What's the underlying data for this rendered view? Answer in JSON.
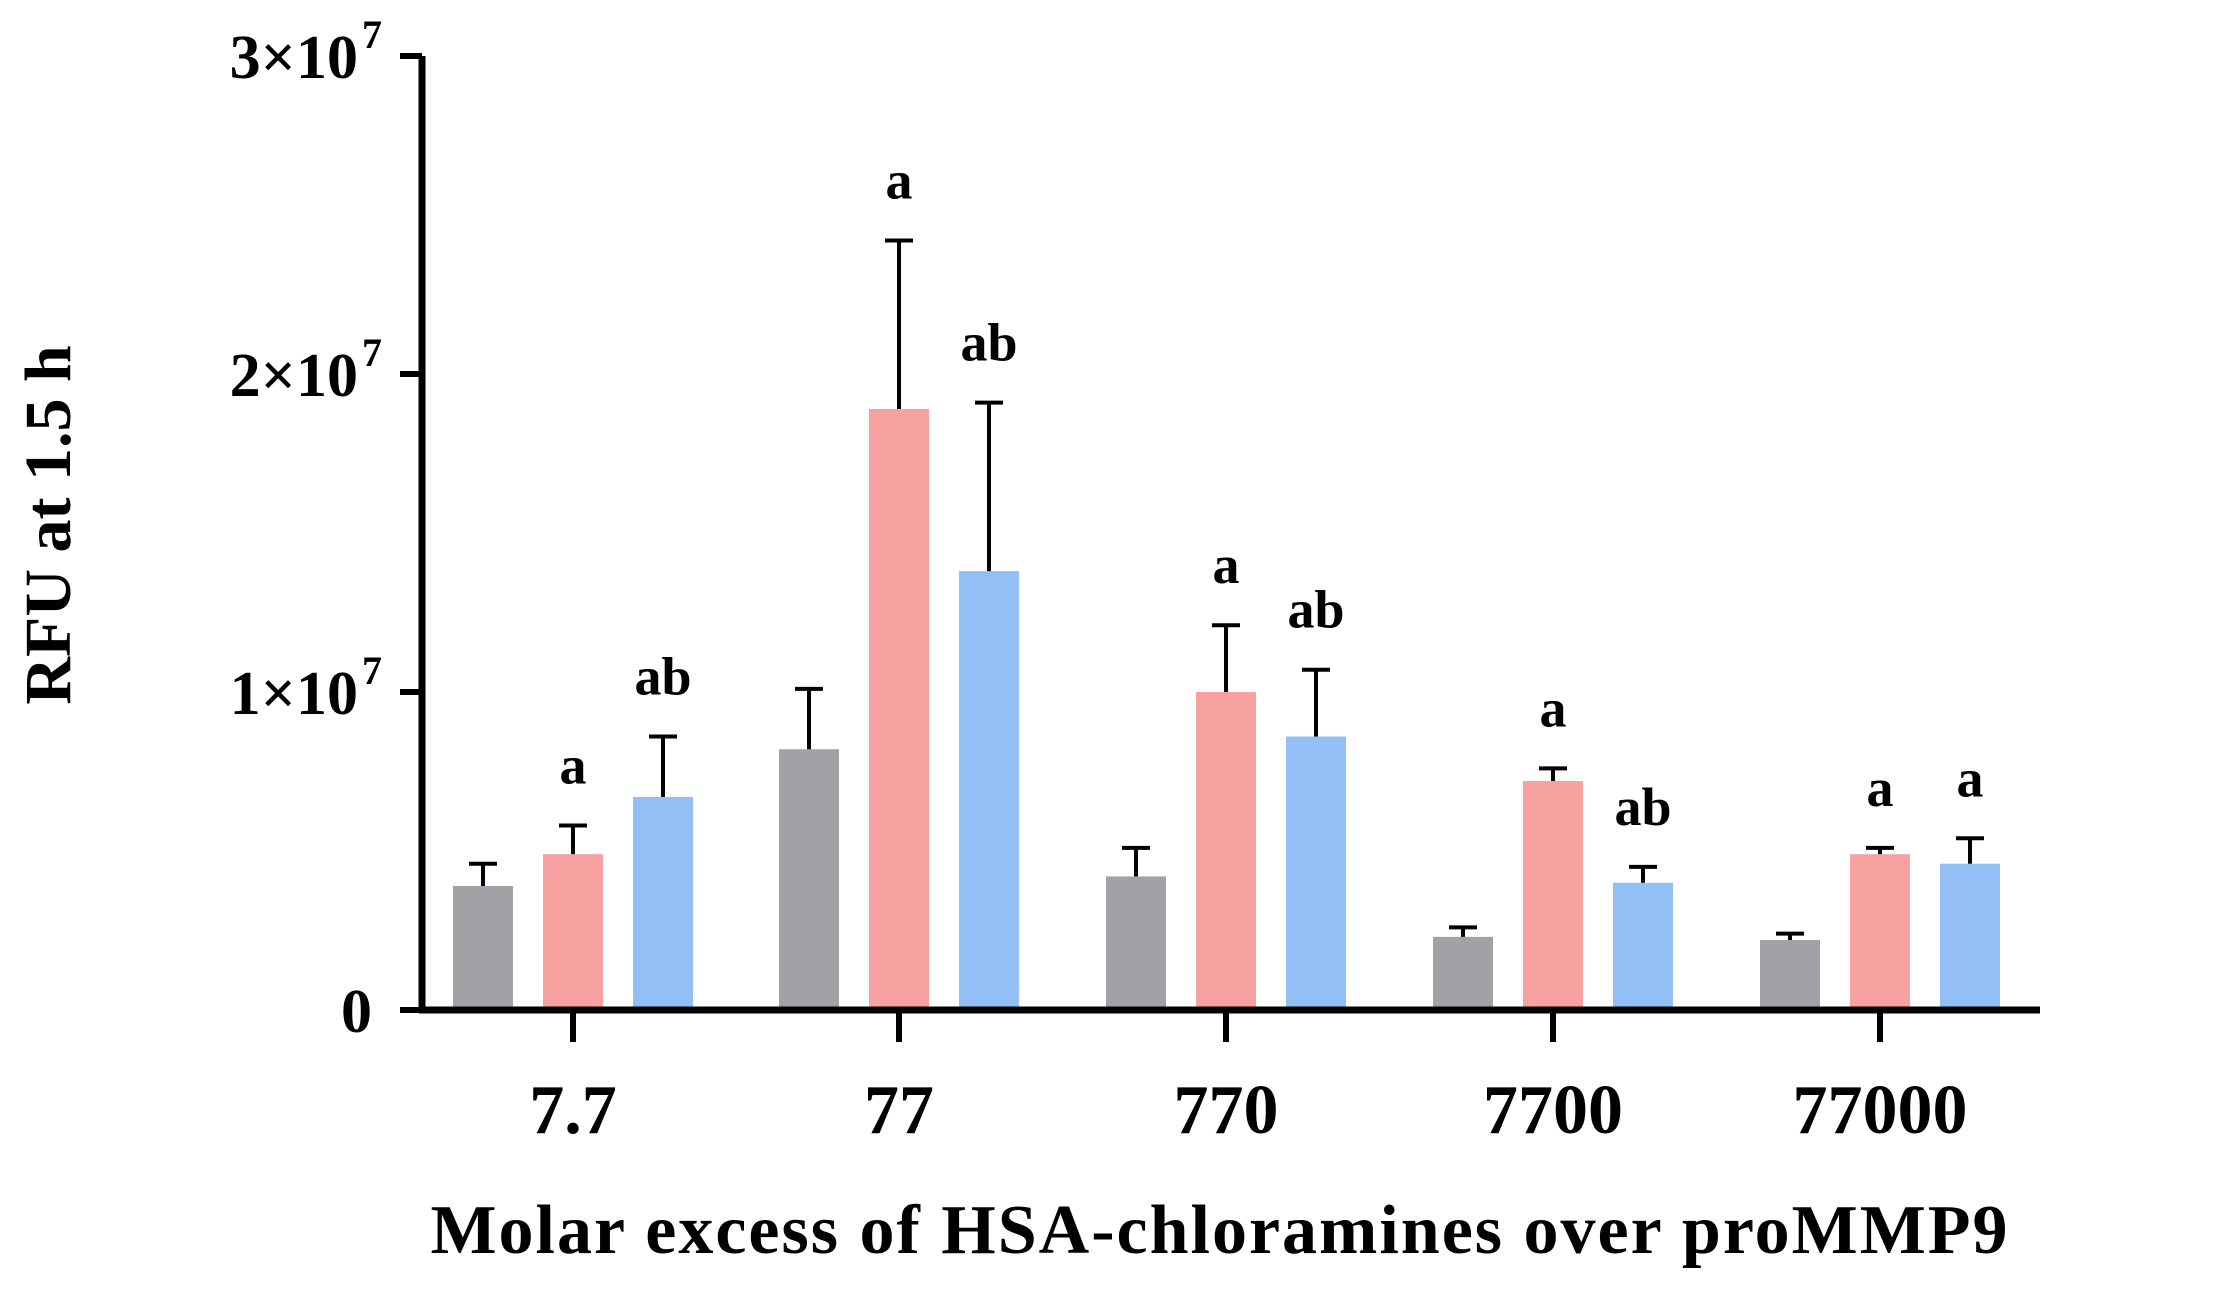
{
  "chart_data": {
    "type": "bar",
    "xlabel": "Molar excess of HSA-chloramines over proMMP9",
    "ylabel": "RFU at 1.5 h",
    "categories": [
      "7.7",
      "77",
      "770",
      "7700",
      "77000"
    ],
    "ylim": [
      0,
      30000000
    ],
    "y_ticks": [
      {
        "value": 0,
        "label": "0",
        "exp": ""
      },
      {
        "value": 10000000,
        "label": "1×10",
        "exp": "7"
      },
      {
        "value": 20000000,
        "label": "2×10",
        "exp": "7"
      },
      {
        "value": 30000000,
        "label": "3×10",
        "exp": "7"
      }
    ],
    "legend": "none",
    "grid": false,
    "series": [
      {
        "color": "#a2a2a6",
        "values": [
          3900000,
          8200000,
          4200000,
          2300000,
          2200000
        ],
        "errors": [
          700000,
          1900000,
          900000,
          300000,
          200000
        ],
        "annotations": [
          "",
          "",
          "",
          "",
          ""
        ]
      },
      {
        "color": "#f7a1a1",
        "values": [
          4900000,
          18900000,
          10000000,
          7200000,
          4900000
        ],
        "errors": [
          900000,
          5300000,
          2100000,
          400000,
          200000
        ],
        "annotations": [
          "a",
          "a",
          "a",
          "a",
          "a"
        ]
      },
      {
        "color": "#92bff6",
        "values": [
          6700000,
          13800000,
          8600000,
          4000000,
          4600000
        ],
        "errors": [
          1900000,
          5300000,
          2100000,
          500000,
          800000
        ],
        "annotations": [
          "ab",
          "ab",
          "ab",
          "ab",
          "a"
        ]
      }
    ]
  }
}
